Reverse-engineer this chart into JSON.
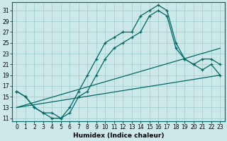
{
  "xlabel": "Humidex (Indice chaleur)",
  "bg_color": "#cce8e8",
  "grid_color": "#99cccc",
  "line_color": "#006666",
  "marker": "+",
  "xlim": [
    -0.5,
    23.5
  ],
  "ylim": [
    10.5,
    32.5
  ],
  "yticks": [
    11,
    13,
    15,
    17,
    19,
    21,
    23,
    25,
    27,
    29,
    31
  ],
  "xticks": [
    0,
    1,
    2,
    3,
    4,
    5,
    6,
    7,
    8,
    9,
    10,
    11,
    12,
    13,
    14,
    15,
    16,
    17,
    18,
    19,
    20,
    21,
    22,
    23
  ],
  "series1_x": [
    0,
    1,
    2,
    3,
    4,
    5,
    6,
    7,
    8,
    9,
    10,
    11,
    12,
    13,
    14,
    15,
    16,
    17,
    18,
    19,
    20,
    21,
    22,
    23
  ],
  "series1_y": [
    16,
    15,
    13,
    12,
    12,
    11,
    13,
    16,
    19,
    22,
    25,
    26,
    27,
    27,
    30,
    31,
    32,
    31,
    25,
    22,
    21,
    20,
    21,
    19
  ],
  "series2_x": [
    0,
    1,
    2,
    3,
    4,
    5,
    6,
    7,
    8,
    9,
    10,
    11,
    12,
    13,
    14,
    15,
    16,
    17,
    18,
    19,
    20,
    21,
    22,
    23
  ],
  "series2_y": [
    16,
    15,
    13,
    12,
    11,
    11,
    12,
    15,
    16,
    19,
    22,
    24,
    25,
    26,
    27,
    30,
    31,
    30,
    24,
    22,
    21,
    22,
    22,
    21
  ],
  "series3_x": [
    0,
    23
  ],
  "series3_y": [
    13,
    19
  ],
  "series4_x": [
    0,
    23
  ],
  "series4_y": [
    13,
    24
  ],
  "xlabel_fontsize": 6.5,
  "tick_fontsize": 5.5
}
